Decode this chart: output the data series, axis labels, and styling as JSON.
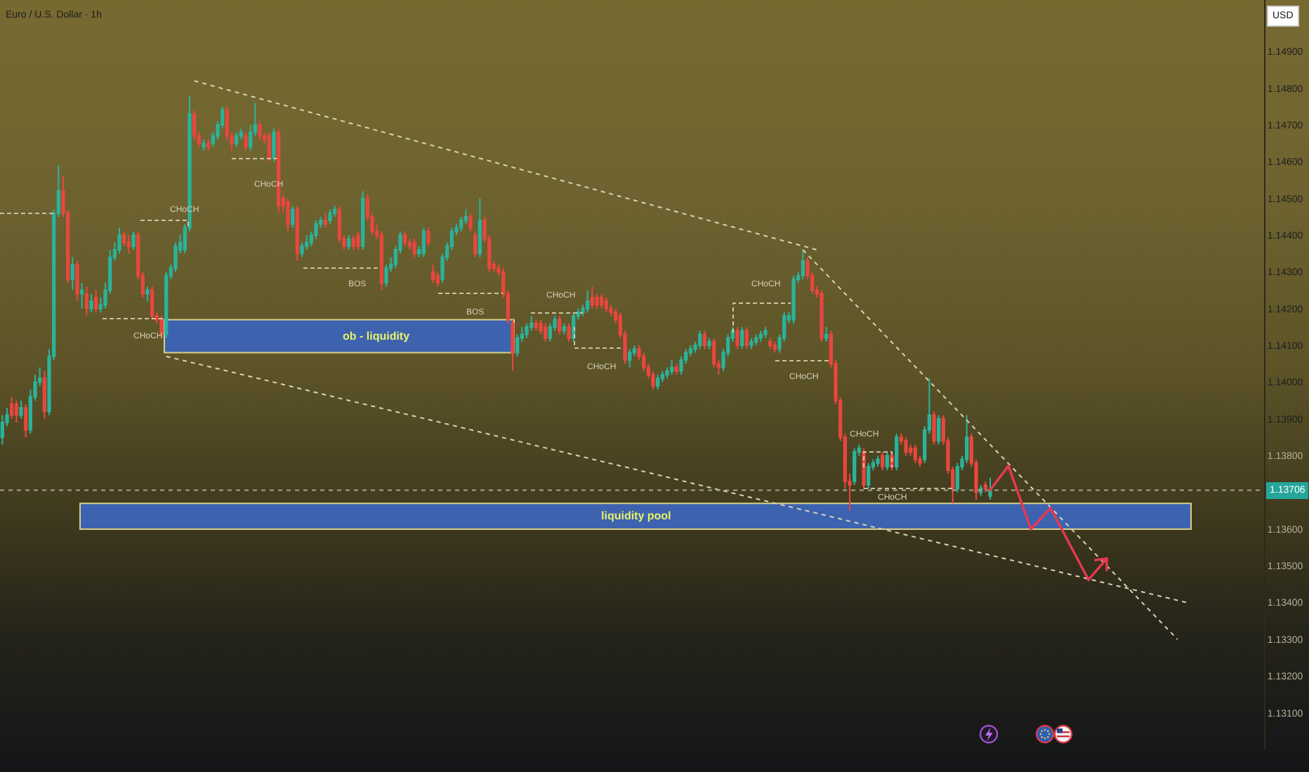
{
  "chart_data": {
    "type": "candlestick",
    "title": "Euro / U.S. Dollar · 1h",
    "ylabel": "USD",
    "categories": [
      null,
      null,
      null,
      null,
      null,
      null,
      null,
      null,
      null,
      null,
      null,
      null,
      null,
      null,
      null,
      null,
      null,
      null,
      null,
      null,
      null,
      null,
      null,
      null,
      null,
      null,
      null,
      null,
      null,
      null,
      null,
      null,
      null,
      null,
      null,
      null,
      null,
      null,
      null,
      null,
      null,
      null,
      null,
      null,
      null,
      null,
      null,
      null,
      null,
      null,
      null,
      null,
      null,
      null,
      null,
      null,
      null,
      null,
      null,
      null,
      null,
      null,
      null,
      null,
      null,
      null,
      null,
      null,
      null,
      null,
      null,
      null,
      null,
      null,
      null,
      null,
      null,
      null,
      null,
      null,
      null,
      null,
      null,
      null,
      null,
      null,
      null,
      null,
      null,
      null,
      null,
      null,
      null,
      null,
      null,
      null,
      null,
      null,
      null,
      null,
      null,
      null,
      null,
      null,
      null,
      null,
      null,
      null,
      null,
      null,
      null,
      null,
      null,
      null,
      null,
      null,
      null,
      null,
      null,
      null,
      null,
      null,
      null,
      null,
      null,
      null,
      null,
      null,
      null,
      null,
      null,
      null,
      null,
      null,
      null,
      null,
      null,
      null,
      null,
      null,
      null,
      null,
      null,
      null,
      null,
      null,
      null,
      null,
      null,
      null,
      null,
      null,
      null,
      null,
      null,
      null,
      null,
      null,
      null,
      null,
      null,
      null,
      null,
      null,
      null,
      null,
      null,
      null,
      null,
      null,
      null,
      null,
      null,
      null,
      null,
      null,
      null,
      null,
      null,
      null,
      null,
      null,
      null,
      null,
      null,
      null,
      null,
      null,
      null,
      null,
      null,
      null,
      null,
      null,
      null,
      null,
      null,
      null,
      null,
      null,
      null,
      null,
      null,
      null,
      null,
      null,
      null,
      null,
      null,
      null,
      null,
      null,
      null,
      null,
      null,
      null,
      null,
      null,
      null,
      null,
      null,
      null,
      null,
      null,
      null,
      null,
      null,
      null,
      null,
      null,
      null,
      null,
      null,
      null,
      null,
      null,
      null,
      null,
      null,
      null,
      null,
      null,
      null,
      null,
      null,
      null,
      null,
      null,
      null,
      null,
      null,
      null,
      null,
      null,
      null,
      null,
      null,
      null,
      null,
      null,
      null,
      null,
      null,
      null,
      null,
      null,
      null,
      null,
      null,
      null
    ],
    "ohlc": [
      [
        1.1385,
        1.1391,
        1.1383,
        1.1389
      ],
      [
        1.1389,
        1.1393,
        1.1388,
        1.1391
      ],
      [
        1.1394,
        1.1396,
        1.139,
        1.1391
      ],
      [
        1.1394,
        1.1395,
        1.1389,
        1.1391
      ],
      [
        1.1391,
        1.1395,
        1.139,
        1.1393
      ],
      [
        1.1393,
        1.1394,
        1.1385,
        1.1387
      ],
      [
        1.1387,
        1.1398,
        1.1386,
        1.1396
      ],
      [
        1.1396,
        1.1402,
        1.1395,
        1.14
      ],
      [
        1.14,
        1.1404,
        1.1399,
        1.1401
      ],
      [
        1.1401,
        1.1403,
        1.139,
        1.1392
      ],
      [
        1.1392,
        1.1409,
        1.1391,
        1.1407
      ],
      [
        1.1407,
        1.1447,
        1.1406,
        1.1446
      ],
      [
        1.1446,
        1.1459,
        1.1445,
        1.1452
      ],
      [
        1.1452,
        1.1456,
        1.1445,
        1.1446
      ],
      [
        1.1446,
        1.1447,
        1.1427,
        1.1428
      ],
      [
        1.1428,
        1.1434,
        1.1425,
        1.1432
      ],
      [
        1.1432,
        1.1433,
        1.1422,
        1.1424
      ],
      [
        1.1424,
        1.1427,
        1.142,
        1.1425
      ],
      [
        1.1424,
        1.1426,
        1.1418,
        1.142
      ],
      [
        1.142,
        1.1424,
        1.1419,
        1.1422
      ],
      [
        1.1423,
        1.1425,
        1.1419,
        1.142
      ],
      [
        1.142,
        1.1423,
        1.1419,
        1.1421
      ],
      [
        1.1421,
        1.1427,
        1.142,
        1.1425
      ],
      [
        1.1425,
        1.1436,
        1.1424,
        1.1434
      ],
      [
        1.1434,
        1.1438,
        1.1433,
        1.1436
      ],
      [
        1.1436,
        1.1442,
        1.1435,
        1.144
      ],
      [
        1.144,
        1.1441,
        1.1437,
        1.1438
      ],
      [
        1.1438,
        1.144,
        1.1435,
        1.1437
      ],
      [
        1.1437,
        1.1441,
        1.1436,
        1.144
      ],
      [
        1.144,
        1.1441,
        1.1428,
        1.1429
      ],
      [
        1.1429,
        1.143,
        1.1423,
        1.1424
      ],
      [
        1.1424,
        1.1426,
        1.1422,
        1.1425
      ],
      [
        1.1425,
        1.1426,
        1.1417,
        1.1418
      ],
      [
        1.1418,
        1.1419,
        1.1416,
        1.1417
      ],
      [
        1.1417,
        1.1418,
        1.1412,
        1.1413
      ],
      [
        1.1413,
        1.143,
        1.1412,
        1.1429
      ],
      [
        1.1429,
        1.1432,
        1.1428,
        1.1431
      ],
      [
        1.1431,
        1.1438,
        1.143,
        1.1437
      ],
      [
        1.1436,
        1.144,
        1.1435,
        1.1438
      ],
      [
        1.1436,
        1.1443,
        1.1435,
        1.1442
      ],
      [
        1.1442,
        1.1478,
        1.1441,
        1.1473
      ],
      [
        1.1473,
        1.1474,
        1.1466,
        1.1467
      ],
      [
        1.1467,
        1.1468,
        1.1464,
        1.1465
      ],
      [
        1.1464,
        1.1466,
        1.1463,
        1.1465
      ],
      [
        1.1465,
        1.1466,
        1.1463,
        1.1464
      ],
      [
        1.1465,
        1.1468,
        1.1464,
        1.1467
      ],
      [
        1.1467,
        1.1471,
        1.1466,
        1.147
      ],
      [
        1.147,
        1.1475,
        1.1469,
        1.1474
      ],
      [
        1.1474,
        1.1475,
        1.1466,
        1.1467
      ],
      [
        1.1467,
        1.1468,
        1.1463,
        1.1465
      ],
      [
        1.1465,
        1.1468,
        1.1464,
        1.1467
      ],
      [
        1.1467,
        1.1469,
        1.1466,
        1.1468
      ],
      [
        1.1467,
        1.1468,
        1.1463,
        1.1464
      ],
      [
        1.1464,
        1.147,
        1.1463,
        1.1468
      ],
      [
        1.1468,
        1.1476,
        1.1467,
        1.147
      ],
      [
        1.147,
        1.1471,
        1.1466,
        1.1467
      ],
      [
        1.1467,
        1.1468,
        1.1465,
        1.1466
      ],
      [
        1.1467,
        1.1468,
        1.146,
        1.1461
      ],
      [
        1.1461,
        1.1469,
        1.146,
        1.1468
      ],
      [
        1.1468,
        1.1469,
        1.1446,
        1.1448
      ],
      [
        1.145,
        1.1451,
        1.1446,
        1.1448
      ],
      [
        1.1449,
        1.145,
        1.1441,
        1.1443
      ],
      [
        1.1443,
        1.1448,
        1.1442,
        1.1447
      ],
      [
        1.1447,
        1.1448,
        1.1433,
        1.1435
      ],
      [
        1.1435,
        1.1438,
        1.1434,
        1.1437
      ],
      [
        1.1437,
        1.144,
        1.1436,
        1.1438
      ],
      [
        1.1438,
        1.1441,
        1.1437,
        1.144
      ],
      [
        1.144,
        1.1444,
        1.1439,
        1.1443
      ],
      [
        1.1443,
        1.1445,
        1.1442,
        1.1444
      ],
      [
        1.1444,
        1.1446,
        1.1442,
        1.1443
      ],
      [
        1.1444,
        1.1447,
        1.1443,
        1.1446
      ],
      [
        1.1446,
        1.1448,
        1.1445,
        1.1447
      ],
      [
        1.1447,
        1.1448,
        1.1438,
        1.1439
      ],
      [
        1.1439,
        1.144,
        1.1436,
        1.1437
      ],
      [
        1.1437,
        1.144,
        1.1436,
        1.1439
      ],
      [
        1.1439,
        1.144,
        1.1436,
        1.1437
      ],
      [
        1.144,
        1.1441,
        1.1436,
        1.1437
      ],
      [
        1.1437,
        1.1452,
        1.1436,
        1.145
      ],
      [
        1.145,
        1.1451,
        1.1444,
        1.1445
      ],
      [
        1.1445,
        1.1446,
        1.144,
        1.1441
      ],
      [
        1.1441,
        1.1443,
        1.1439,
        1.144
      ],
      [
        1.144,
        1.1441,
        1.1425,
        1.1427
      ],
      [
        1.1427,
        1.1432,
        1.1426,
        1.1431
      ],
      [
        1.1431,
        1.1434,
        1.143,
        1.1432
      ],
      [
        1.1432,
        1.1437,
        1.1431,
        1.1436
      ],
      [
        1.1436,
        1.1441,
        1.1435,
        1.144
      ],
      [
        1.144,
        1.1441,
        1.1437,
        1.1438
      ],
      [
        1.1438,
        1.1439,
        1.1436,
        1.1437
      ],
      [
        1.1438,
        1.1439,
        1.1434,
        1.1435
      ],
      [
        1.1435,
        1.1437,
        1.1434,
        1.1436
      ],
      [
        1.1435,
        1.1442,
        1.1434,
        1.1441
      ],
      [
        1.1441,
        1.1442,
        1.1437,
        1.1438
      ],
      [
        1.143,
        1.1432,
        1.1427,
        1.1428
      ],
      [
        1.1429,
        1.143,
        1.1426,
        1.1427
      ],
      [
        1.1428,
        1.1435,
        1.1427,
        1.1434
      ],
      [
        1.1434,
        1.1438,
        1.1433,
        1.1437
      ],
      [
        1.1437,
        1.1442,
        1.1436,
        1.1441
      ],
      [
        1.1441,
        1.1443,
        1.144,
        1.1442
      ],
      [
        1.1442,
        1.1445,
        1.1441,
        1.1444
      ],
      [
        1.1444,
        1.1447,
        1.1443,
        1.1445
      ],
      [
        1.1445,
        1.1446,
        1.1441,
        1.1442
      ],
      [
        1.144,
        1.1441,
        1.1434,
        1.1435
      ],
      [
        1.1435,
        1.145,
        1.1434,
        1.1444
      ],
      [
        1.1444,
        1.1445,
        1.1438,
        1.1439
      ],
      [
        1.1439,
        1.144,
        1.143,
        1.1431
      ],
      [
        1.1432,
        1.1433,
        1.143,
        1.1431
      ],
      [
        1.1431,
        1.1432,
        1.1429,
        1.143
      ],
      [
        1.143,
        1.1431,
        1.1423,
        1.1424
      ],
      [
        1.1424,
        1.1425,
        1.1416,
        1.1417
      ],
      [
        1.1416,
        1.1417,
        1.1403,
        1.1408
      ],
      [
        1.1408,
        1.1413,
        1.1407,
        1.1412
      ],
      [
        1.1412,
        1.1415,
        1.1411,
        1.1413
      ],
      [
        1.1413,
        1.1416,
        1.1412,
        1.1415
      ],
      [
        1.1415,
        1.1418,
        1.1414,
        1.1416
      ],
      [
        1.1416,
        1.1417,
        1.1414,
        1.1415
      ],
      [
        1.1416,
        1.1417,
        1.1413,
        1.1414
      ],
      [
        1.1415,
        1.1416,
        1.1411,
        1.1412
      ],
      [
        1.1412,
        1.1416,
        1.1411,
        1.1415
      ],
      [
        1.1415,
        1.1418,
        1.1414,
        1.1417
      ],
      [
        1.1417,
        1.1418,
        1.1413,
        1.1414
      ],
      [
        1.1414,
        1.1416,
        1.1413,
        1.1415
      ],
      [
        1.1415,
        1.1416,
        1.1411,
        1.1412
      ],
      [
        1.1412,
        1.1419,
        1.1411,
        1.1418
      ],
      [
        1.1418,
        1.142,
        1.1417,
        1.1419
      ],
      [
        1.1419,
        1.1421,
        1.1418,
        1.142
      ],
      [
        1.142,
        1.1425,
        1.1419,
        1.1422
      ],
      [
        1.1423,
        1.1426,
        1.142,
        1.1421
      ],
      [
        1.1423,
        1.1424,
        1.142,
        1.1421
      ],
      [
        1.1423,
        1.1424,
        1.142,
        1.1421
      ],
      [
        1.1422,
        1.1423,
        1.1419,
        1.142
      ],
      [
        1.142,
        1.1421,
        1.1418,
        1.1419
      ],
      [
        1.1419,
        1.142,
        1.1416,
        1.1417
      ],
      [
        1.1418,
        1.1419,
        1.1412,
        1.1413
      ],
      [
        1.1413,
        1.1414,
        1.1405,
        1.1406
      ],
      [
        1.1406,
        1.1409,
        1.1404,
        1.1408
      ],
      [
        1.1408,
        1.141,
        1.1407,
        1.1409
      ],
      [
        1.1409,
        1.141,
        1.1406,
        1.1407
      ],
      [
        1.1407,
        1.1408,
        1.1403,
        1.1404
      ],
      [
        1.1404,
        1.1405,
        1.1401,
        1.1402
      ],
      [
        1.1402,
        1.1403,
        1.1398,
        1.1399
      ],
      [
        1.1399,
        1.1402,
        1.1398,
        1.1401
      ],
      [
        1.1401,
        1.1403,
        1.14,
        1.1402
      ],
      [
        1.1402,
        1.1404,
        1.1401,
        1.1403
      ],
      [
        1.1403,
        1.1406,
        1.1402,
        1.1404
      ],
      [
        1.1404,
        1.1405,
        1.1402,
        1.1403
      ],
      [
        1.1403,
        1.1407,
        1.1402,
        1.1406
      ],
      [
        1.1406,
        1.1409,
        1.1405,
        1.1408
      ],
      [
        1.1408,
        1.141,
        1.1407,
        1.1409
      ],
      [
        1.1409,
        1.1411,
        1.1408,
        1.141
      ],
      [
        1.141,
        1.1414,
        1.1409,
        1.1413
      ],
      [
        1.1413,
        1.1414,
        1.1409,
        1.141
      ],
      [
        1.141,
        1.1412,
        1.1409,
        1.1411
      ],
      [
        1.1411,
        1.1412,
        1.1404,
        1.1405
      ],
      [
        1.1405,
        1.1406,
        1.1402,
        1.1404
      ],
      [
        1.1404,
        1.1409,
        1.1403,
        1.1408
      ],
      [
        1.1408,
        1.1413,
        1.1407,
        1.1412
      ],
      [
        1.1412,
        1.1415,
        1.1411,
        1.1414
      ],
      [
        1.1414,
        1.1415,
        1.1409,
        1.141
      ],
      [
        1.141,
        1.1415,
        1.1409,
        1.1414
      ],
      [
        1.1414,
        1.1415,
        1.1409,
        1.141
      ],
      [
        1.141,
        1.1412,
        1.1409,
        1.1411
      ],
      [
        1.1411,
        1.1413,
        1.141,
        1.1412
      ],
      [
        1.1412,
        1.1414,
        1.1411,
        1.1413
      ],
      [
        1.1413,
        1.1415,
        1.1412,
        1.1414
      ],
      [
        1.1411,
        1.1412,
        1.1409,
        1.141
      ],
      [
        1.141,
        1.1411,
        1.1408,
        1.1409
      ],
      [
        1.1409,
        1.1413,
        1.1408,
        1.1412
      ],
      [
        1.1412,
        1.1419,
        1.1411,
        1.1418
      ],
      [
        1.1417,
        1.1419,
        1.1416,
        1.1418
      ],
      [
        1.1417,
        1.1429,
        1.1416,
        1.1428
      ],
      [
        1.1428,
        1.143,
        1.1427,
        1.1429
      ],
      [
        1.1429,
        1.1436,
        1.1428,
        1.1433
      ],
      [
        1.1433,
        1.1434,
        1.1428,
        1.1429
      ],
      [
        1.1429,
        1.143,
        1.1424,
        1.1425
      ],
      [
        1.1425,
        1.1426,
        1.1423,
        1.1424
      ],
      [
        1.1424,
        1.1425,
        1.1411,
        1.1412
      ],
      [
        1.1412,
        1.1415,
        1.1411,
        1.1413
      ],
      [
        1.1413,
        1.1414,
        1.1404,
        1.1405
      ],
      [
        1.1405,
        1.1406,
        1.1394,
        1.1395
      ],
      [
        1.1395,
        1.1396,
        1.1384,
        1.1385
      ],
      [
        1.1385,
        1.1386,
        1.1371,
        1.1373
      ],
      [
        1.1373,
        1.1375,
        1.1365,
        1.1372
      ],
      [
        1.1373,
        1.1382,
        1.1372,
        1.1381
      ],
      [
        1.1381,
        1.1383,
        1.138,
        1.1382
      ],
      [
        1.1381,
        1.1382,
        1.1371,
        1.1372
      ],
      [
        1.1372,
        1.1378,
        1.1371,
        1.1377
      ],
      [
        1.1377,
        1.1379,
        1.1376,
        1.1378
      ],
      [
        1.1378,
        1.138,
        1.1377,
        1.1379
      ],
      [
        1.138,
        1.1381,
        1.1376,
        1.1377
      ],
      [
        1.1377,
        1.1381,
        1.1376,
        1.138
      ],
      [
        1.138,
        1.1381,
        1.1376,
        1.1377
      ],
      [
        1.1377,
        1.1386,
        1.1376,
        1.1385
      ],
      [
        1.1385,
        1.1386,
        1.1383,
        1.1384
      ],
      [
        1.1384,
        1.1385,
        1.138,
        1.1381
      ],
      [
        1.1382,
        1.1383,
        1.138,
        1.1381
      ],
      [
        1.1382,
        1.1383,
        1.1378,
        1.1379
      ],
      [
        1.1379,
        1.138,
        1.1377,
        1.1378
      ],
      [
        1.1379,
        1.1388,
        1.1378,
        1.1387
      ],
      [
        1.1387,
        1.1401,
        1.1386,
        1.1391
      ],
      [
        1.1391,
        1.1392,
        1.1383,
        1.1384
      ],
      [
        1.1384,
        1.1391,
        1.1383,
        1.139
      ],
      [
        1.139,
        1.1391,
        1.1383,
        1.1384
      ],
      [
        1.1384,
        1.1385,
        1.1375,
        1.1376
      ],
      [
        1.1376,
        1.1377,
        1.1367,
        1.1371
      ],
      [
        1.1371,
        1.1378,
        1.137,
        1.1377
      ],
      [
        1.1377,
        1.138,
        1.1376,
        1.1379
      ],
      [
        1.1379,
        1.1391,
        1.1378,
        1.1385
      ],
      [
        1.1385,
        1.1386,
        1.1377,
        1.1378
      ],
      [
        1.1378,
        1.1379,
        1.1368,
        1.137
      ],
      [
        1.137,
        1.1372,
        1.1369,
        1.1371
      ],
      [
        1.1372,
        1.1373,
        1.137,
        1.1371
      ],
      [
        1.1369,
        1.1374,
        1.1368,
        1.13706
      ],
      null,
      null,
      null,
      null,
      null,
      null,
      null,
      null,
      null,
      null,
      null,
      null,
      null,
      null,
      null,
      null,
      null,
      null,
      null,
      null,
      null,
      null,
      null,
      null,
      null,
      null,
      null,
      null,
      null,
      null,
      null,
      null,
      null,
      null,
      null,
      null,
      null,
      null,
      null,
      null,
      null,
      null,
      null,
      null,
      null,
      null,
      null,
      null,
      null,
      null,
      null,
      null,
      null,
      null,
      null,
      null,
      null,
      null
    ],
    "series": [
      {
        "type": "line",
        "color": "#d9d4b6",
        "values": [
          null,
          null,
          null,
          null,
          null,
          null,
          null,
          null,
          null,
          null,
          null,
          null,
          null,
          null,
          null,
          null,
          null,
          null,
          null,
          null,
          null,
          null,
          null,
          null,
          null,
          null,
          null,
          null,
          null,
          null,
          null,
          null,
          null,
          null,
          null,
          null,
          null,
          null,
          null,
          null,
          null,
          1.1482,
          null,
          null,
          null,
          null,
          null,
          null,
          null,
          null,
          null,
          null,
          null,
          null,
          null,
          null,
          null,
          null,
          null,
          null,
          null,
          null,
          null,
          null,
          null,
          null,
          null,
          null,
          null,
          null,
          null,
          null,
          null,
          null,
          null,
          null,
          null,
          null,
          null,
          null,
          null,
          null,
          null,
          null,
          null,
          null,
          null,
          null,
          null,
          null,
          null,
          null,
          null,
          null,
          null,
          null,
          null,
          null,
          null,
          null,
          null,
          null,
          null,
          null,
          null,
          null,
          null,
          null,
          null,
          null,
          null,
          null,
          null,
          null,
          null,
          null,
          null,
          null,
          null,
          null,
          null,
          null,
          null,
          null,
          null,
          null,
          null,
          null,
          null,
          null,
          null,
          null,
          null,
          null,
          null,
          null,
          null,
          null,
          null,
          null,
          null,
          null,
          null,
          null,
          null,
          null,
          null,
          null,
          null,
          null,
          null,
          null,
          null,
          null,
          null,
          null,
          null,
          null,
          null,
          null,
          null,
          null,
          null,
          null,
          null,
          null,
          null,
          null,
          null,
          null,
          null,
          null,
          null,
          null,
          1.1436,
          null,
          null,
          null,
          null,
          null,
          null,
          null,
          null,
          null,
          null,
          null,
          null,
          null,
          null,
          null,
          null,
          null,
          null,
          null,
          null,
          null,
          null,
          null,
          null,
          null,
          null,
          null,
          null,
          null,
          null,
          null,
          null,
          null,
          null,
          null,
          null,
          null,
          null,
          null,
          null,
          null,
          null,
          null,
          null,
          null,
          null,
          null,
          null,
          null,
          null,
          null,
          null,
          null,
          null,
          null,
          null,
          null,
          null,
          null,
          null,
          null,
          null,
          null,
          null,
          null,
          null,
          null,
          null,
          null,
          null,
          null,
          null,
          null,
          null,
          null,
          null,
          null,
          null,
          null,
          null,
          null,
          null,
          null,
          null,
          null,
          null,
          null,
          null,
          null,
          null,
          null,
          null,
          null,
          null,
          null
        ]
      },
      {
        "type": "line",
        "color": "#d9d4b6",
        "values": [
          null,
          null,
          null,
          null,
          null,
          null,
          null,
          null,
          null,
          null,
          null,
          null,
          null,
          null,
          null,
          null,
          null,
          null,
          null,
          null,
          null,
          null,
          null,
          null,
          null,
          null,
          null,
          null,
          null,
          null,
          null,
          null,
          null,
          null,
          null,
          null,
          null,
          null,
          null,
          null,
          null,
          null,
          null,
          null,
          null,
          null,
          null,
          null,
          null,
          null,
          null,
          null,
          null,
          null,
          null,
          null,
          null,
          null,
          null,
          null,
          null,
          null,
          null,
          null,
          null,
          null,
          null,
          null,
          null,
          null,
          null,
          null,
          null,
          null,
          null,
          null,
          null,
          null,
          null,
          null,
          null,
          null,
          null,
          null,
          null,
          null,
          null,
          null,
          null,
          null,
          null,
          null,
          null,
          null,
          null,
          null,
          null,
          null,
          null,
          null,
          null,
          null,
          null,
          null,
          null,
          null,
          null,
          null,
          null,
          null,
          null,
          null,
          null,
          null,
          null,
          null,
          null,
          null,
          null,
          null,
          null,
          null,
          null,
          null,
          null,
          null,
          null,
          null,
          null,
          null,
          null,
          null,
          null,
          null,
          null,
          null,
          null,
          null,
          null,
          null,
          null,
          null,
          null,
          null,
          null,
          null,
          null,
          null,
          null,
          null,
          null,
          null,
          null,
          null,
          null,
          null,
          null,
          null,
          null,
          null,
          null,
          null,
          null,
          null,
          null,
          null,
          null,
          null,
          null,
          null,
          null,
          1.1436,
          null,
          null,
          null,
          null,
          null,
          null,
          null,
          null,
          null,
          null,
          null,
          null,
          null,
          null,
          null,
          null,
          null,
          null,
          null,
          null,
          null,
          null,
          null,
          null,
          null,
          null,
          null,
          null,
          null,
          null,
          null,
          null,
          null,
          null,
          null,
          null,
          null,
          null,
          null,
          null,
          null,
          null,
          null,
          null,
          null,
          null,
          null,
          null,
          null,
          null,
          null,
          null,
          null,
          null,
          null,
          null,
          null,
          null,
          null,
          null,
          null,
          null,
          null,
          null,
          null,
          null,
          null,
          null,
          null,
          null,
          null,
          null,
          null,
          null,
          null,
          null,
          null,
          null,
          null,
          1.133,
          null,
          null,
          null,
          null,
          null,
          null,
          null,
          null,
          null,
          null,
          null,
          null,
          null,
          null,
          null,
          null,
          null,
          null
        ]
      },
      {
        "type": "line",
        "color": "#d9d4b6",
        "values": [
          null,
          null,
          null,
          null,
          null,
          null,
          null,
          null,
          null,
          null,
          null,
          null,
          null,
          null,
          null,
          null,
          null,
          null,
          null,
          null,
          null,
          null,
          null,
          null,
          null,
          null,
          null,
          null,
          null,
          null,
          null,
          null,
          null,
          null,
          null,
          1.1407,
          null,
          null,
          null,
          null,
          null,
          null,
          null,
          null,
          null,
          null,
          null,
          null,
          null,
          null,
          null,
          null,
          null,
          null,
          null,
          1.14009,
          null,
          null,
          null,
          null,
          null,
          null,
          null,
          null,
          null,
          null,
          null,
          null,
          null,
          null,
          null,
          null,
          null,
          null,
          null,
          1.13947,
          null,
          null,
          null,
          null,
          null,
          null,
          null,
          null,
          null,
          null,
          null,
          null,
          null,
          null,
          null,
          null,
          null,
          null,
          null,
          1.13886,
          null,
          null,
          null,
          null,
          null,
          null,
          null,
          null,
          null,
          null,
          null,
          null,
          null,
          null,
          null,
          null,
          null,
          null,
          null,
          1.13824,
          null,
          null,
          null,
          null,
          null,
          null,
          null,
          null,
          null,
          null,
          null,
          null,
          null,
          null,
          null,
          null,
          null,
          null,
          null,
          1.13763,
          null,
          null,
          null,
          null,
          null,
          null,
          null,
          null,
          null,
          null,
          null,
          null,
          null,
          null,
          null,
          null,
          null,
          null,
          null,
          1.13701,
          null,
          null,
          null,
          null,
          null,
          null,
          null,
          null,
          null,
          null,
          null,
          null,
          null,
          null,
          null,
          null,
          null,
          null,
          null,
          1.1364,
          null,
          null,
          null,
          null,
          null,
          null,
          null,
          null,
          null,
          null,
          null,
          null,
          null,
          null,
          null,
          null,
          null,
          null,
          null,
          1.13578,
          null,
          null,
          null,
          null,
          null,
          null,
          null,
          null,
          null,
          null,
          null,
          null,
          null,
          null,
          null,
          null,
          null,
          null,
          null,
          1.13517,
          null,
          null,
          null,
          null,
          null,
          null,
          null,
          null,
          null,
          null,
          null,
          null,
          null,
          null,
          null,
          null,
          null,
          null,
          null,
          1.13455,
          null,
          null,
          null,
          null,
          null,
          null,
          null,
          null,
          null,
          null,
          null,
          null,
          null,
          null,
          null,
          null,
          null,
          1.134,
          null,
          null,
          null,
          null,
          null,
          null,
          null,
          null,
          null,
          null,
          null,
          null,
          null,
          null,
          null,
          null
        ]
      }
    ],
    "line_style": "dotted",
    "ylim": [
      1.13,
      1.1504
    ],
    "yticks": [
      {
        "value": 1.131,
        "label": "1.13100"
      },
      {
        "value": 1.132,
        "label": "1.13200"
      },
      {
        "value": 1.133,
        "label": "1.13300"
      },
      {
        "value": 1.134,
        "label": "1.13400"
      },
      {
        "value": 1.135,
        "label": "1.13500"
      },
      {
        "value": 1.136,
        "label": "1.13600"
      },
      {
        "value": 1.138,
        "label": "1.13800"
      },
      {
        "value": 1.139,
        "label": "1.13900"
      },
      {
        "value": 1.14,
        "label": "1.14000"
      },
      {
        "value": 1.141,
        "label": "1.14100"
      },
      {
        "value": 1.142,
        "label": "1.14200"
      },
      {
        "value": 1.143,
        "label": "1.14300"
      },
      {
        "value": 1.144,
        "label": "1.14400"
      },
      {
        "value": 1.145,
        "label": "1.14500"
      },
      {
        "value": 1.146,
        "label": "1.14600"
      },
      {
        "value": 1.147,
        "label": "1.14700"
      },
      {
        "value": 1.148,
        "label": "1.14800"
      },
      {
        "value": 1.149,
        "label": "1.14900"
      }
    ],
    "tick_labels": "y",
    "ref_lines": [
      {
        "axis": "y",
        "value": 1.13706,
        "label": "1.13706",
        "line_style": "dotted"
      }
    ],
    "bands": [
      {
        "axis": "y",
        "from": 1.1408,
        "to": 1.1417,
        "label": "ob - liquidity",
        "color": "#3d63b0"
      },
      {
        "axis": "y",
        "from": 1.136,
        "to": 1.1367,
        "label": "liquidity pool",
        "color": "#3d63b0"
      }
    ],
    "annotations": [
      "CHoCH",
      "CHoCH",
      "CHoCH",
      "BOS",
      "BOS",
      "CHoCH",
      "CHoCH",
      "CHoCH",
      "CHoCH",
      "CHoCH",
      "CHoCH"
    ]
  }
}
